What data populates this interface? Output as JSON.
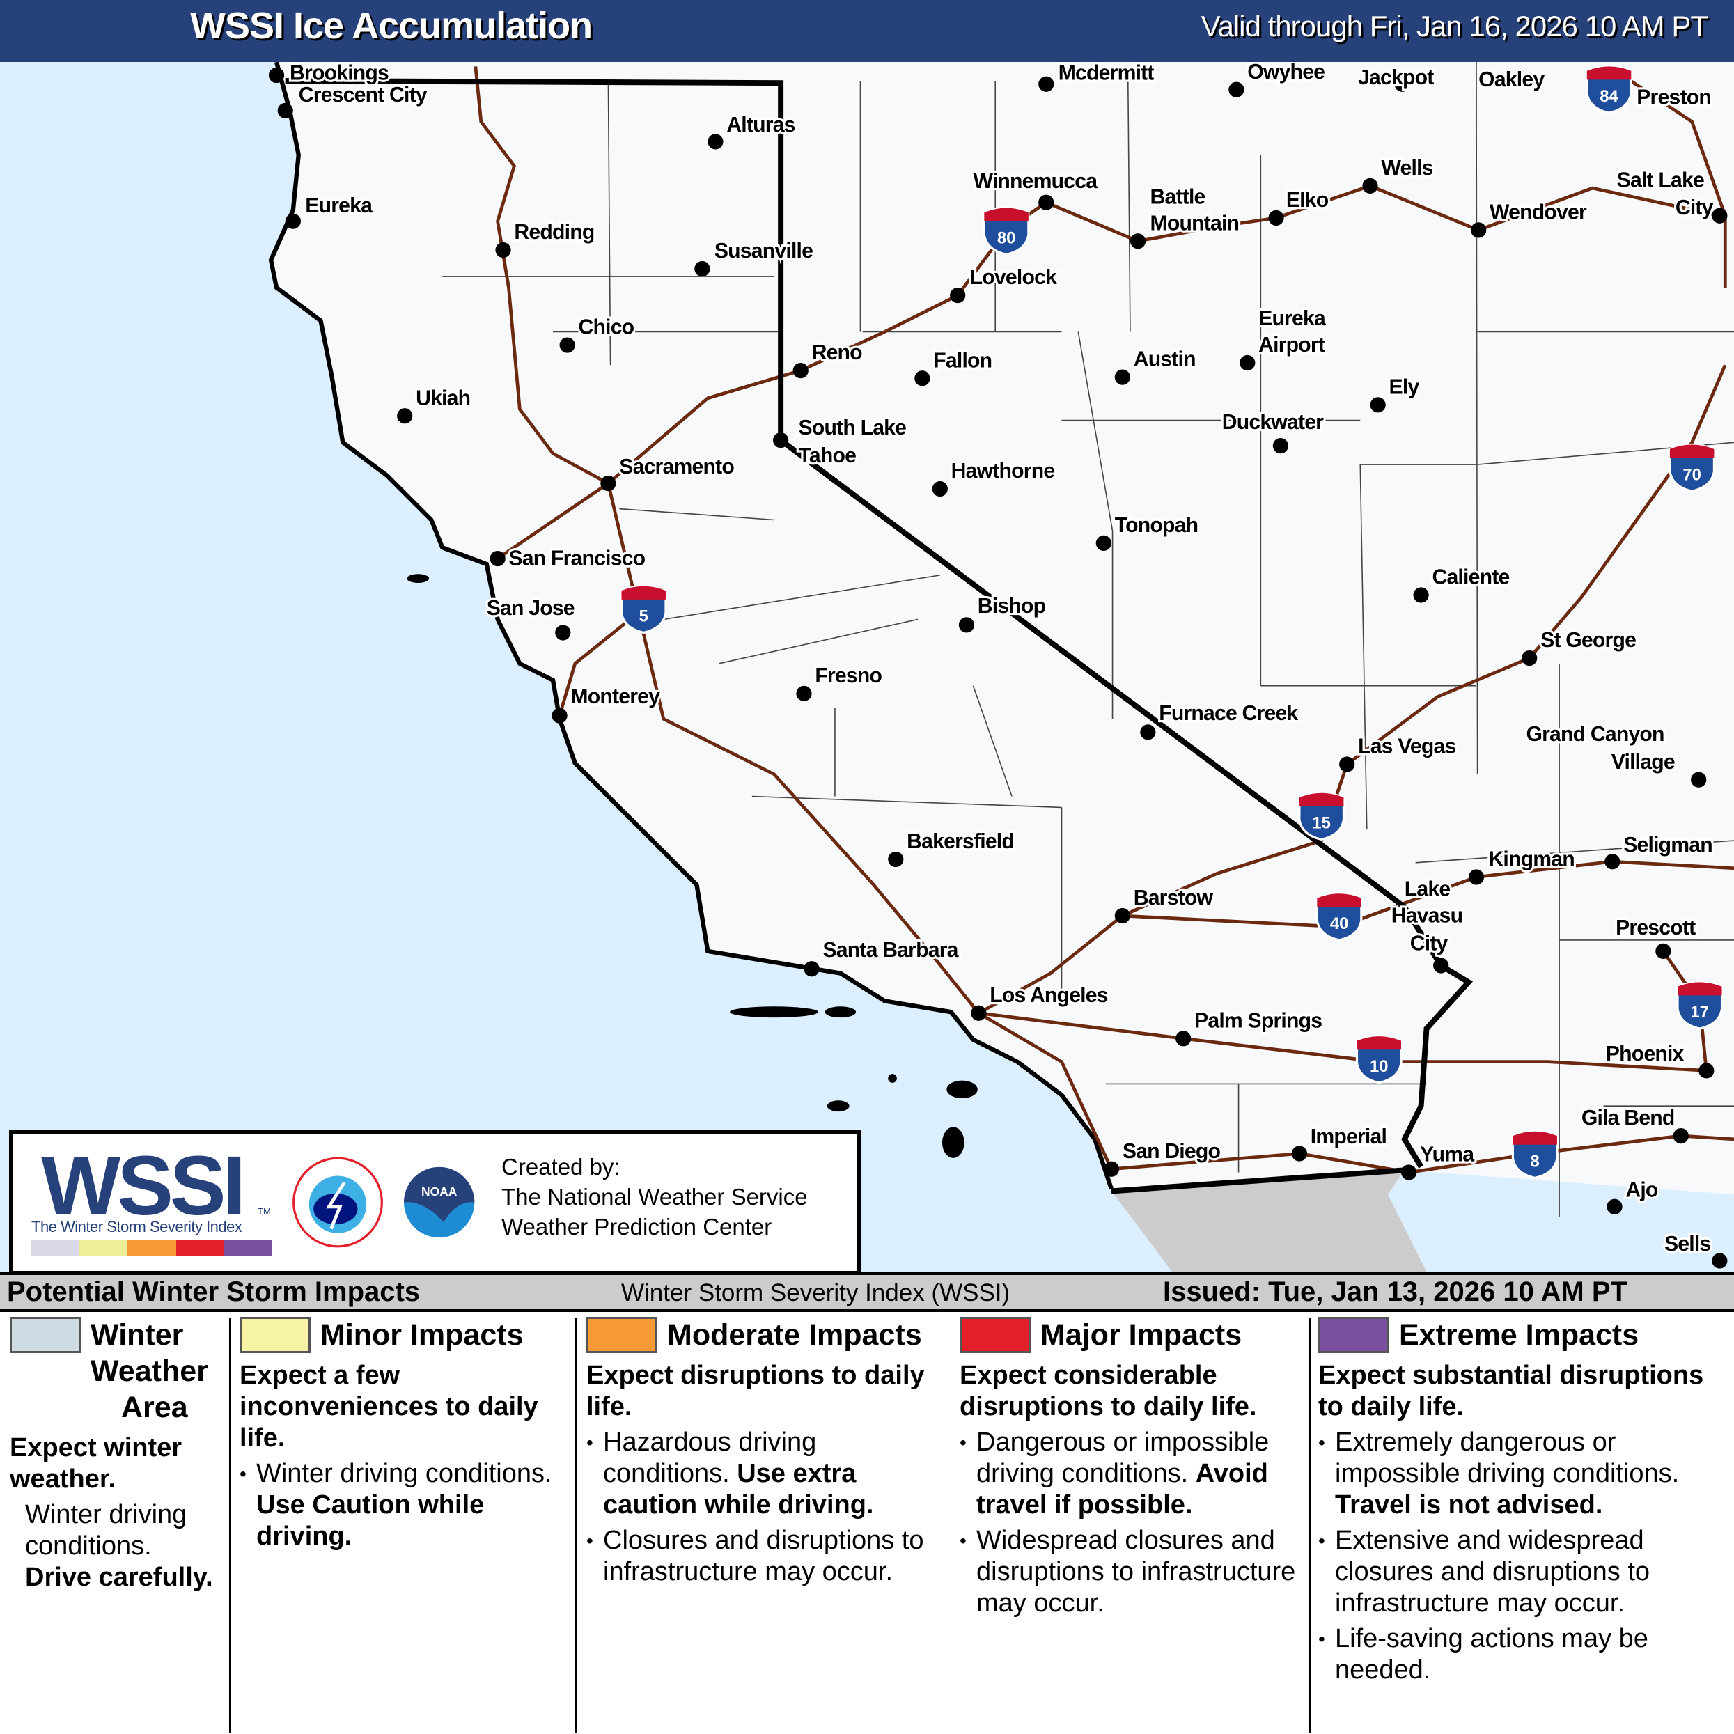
{
  "header": {
    "title": "WSSI Ice Accumulation",
    "valid": "Valid through Fri, Jan 16, 2026 10 AM PT"
  },
  "colors": {
    "header_bg": "#27417a",
    "ocean": "#dcefff",
    "land": "#f8f9fb",
    "roads": "#6b2a10",
    "mexico": "#cccccc",
    "shield": "#1f4e9c",
    "shield_top": "#c8102e"
  },
  "map": {
    "cities": [
      "Brookings",
      "Crescent City",
      "Eureka",
      "Redding",
      "Alturas",
      "Susanville",
      "Chico",
      "Ukiah",
      "Reno",
      "Sacramento",
      "South Lake",
      "Tahoe",
      "Winnemucca",
      "Battle",
      "Mountain",
      "Elko",
      "Wells",
      "Wendover",
      "Salt Lake",
      "City",
      "Lovelock",
      "Fallon",
      "Austin",
      "Eureka",
      "Airport",
      "Ely",
      "Duckwater",
      "Hawthorne",
      "Tonopah",
      "Caliente",
      "San Francisco",
      "San Jose",
      "Bishop",
      "St George",
      "Fresno",
      "Monterey",
      "Furnace Creek",
      "Las Vegas",
      "Grand Canyon",
      "Village",
      "Bakersfield",
      "Kingman",
      "Seligman",
      "Lake",
      "Havasu",
      "City",
      "Barstow",
      "Prescott",
      "Santa Barbara",
      "Los Angeles",
      "Palm Springs",
      "Phoenix",
      "Gila Bend",
      "San Diego",
      "Imperial",
      "Yuma",
      "Ajo",
      "Sells",
      "Mcdermitt",
      "Owyhee",
      "Jackpot",
      "Oakley",
      "Preston"
    ],
    "interstates": [
      "80",
      "5",
      "15",
      "40",
      "10",
      "8",
      "17",
      "70",
      "84"
    ]
  },
  "credit": {
    "logo": "WSSI",
    "tm": "TM",
    "logo_sub": "The Winter Storm Severity Index",
    "scale_colors": [
      "#d8d8e8",
      "#eeee99",
      "#f79a35",
      "#e3202a",
      "#7b4fa0"
    ],
    "created_by": "Created by:",
    "org1": "The National Weather Service",
    "org2": "Weather Prediction Center",
    "nws_seal": "NATIONAL WEATHER SERVICE",
    "noaa_seal": "NOAA"
  },
  "legend": {
    "title": "Potential Winter Storm Impacts",
    "subtitle": "Winter Storm Severity Index (WSSI)",
    "issued": "Issued: Tue, Jan 13, 2026 10 AM PT",
    "categories": [
      {
        "name1": "Winter",
        "name2": "Weather",
        "name3": "Area",
        "color": "#cfdbe3",
        "head": "Expect winter weather.",
        "b1": "Winter driving conditions.",
        "b1bold": "Drive carefully."
      },
      {
        "name": "Minor Impacts",
        "color": "#f6f3a4",
        "head": "Expect a few inconveniences to daily life.",
        "b1": "Winter driving conditions.",
        "b1bold": "Use Caution while driving."
      },
      {
        "name": "Moderate Impacts",
        "color": "#f79a35",
        "head": "Expect disruptions to daily life.",
        "b1": "Hazardous driving conditions.",
        "b1bold": "Use extra caution while driving.",
        "b2": "Closures and disruptions to infrastructure may occur."
      },
      {
        "name": "Major Impacts",
        "color": "#e3202a",
        "head": "Expect considerable disruptions to daily life.",
        "b1": "Dangerous or impossible driving conditions.",
        "b1bold": "Avoid travel if possible.",
        "b2": "Widespread closures and disruptions to infrastructure may occur."
      },
      {
        "name": "Extreme Impacts",
        "color": "#7b4fa0",
        "head": "Expect substantial disruptions to daily life.",
        "b1": "Extremely dangerous or impossible driving conditions.",
        "b1bold": "Travel is not advised.",
        "b2": "Extensive and widespread closures and disruptions to infrastructure may occur.",
        "b3": "Life-saving actions may be needed."
      }
    ]
  }
}
